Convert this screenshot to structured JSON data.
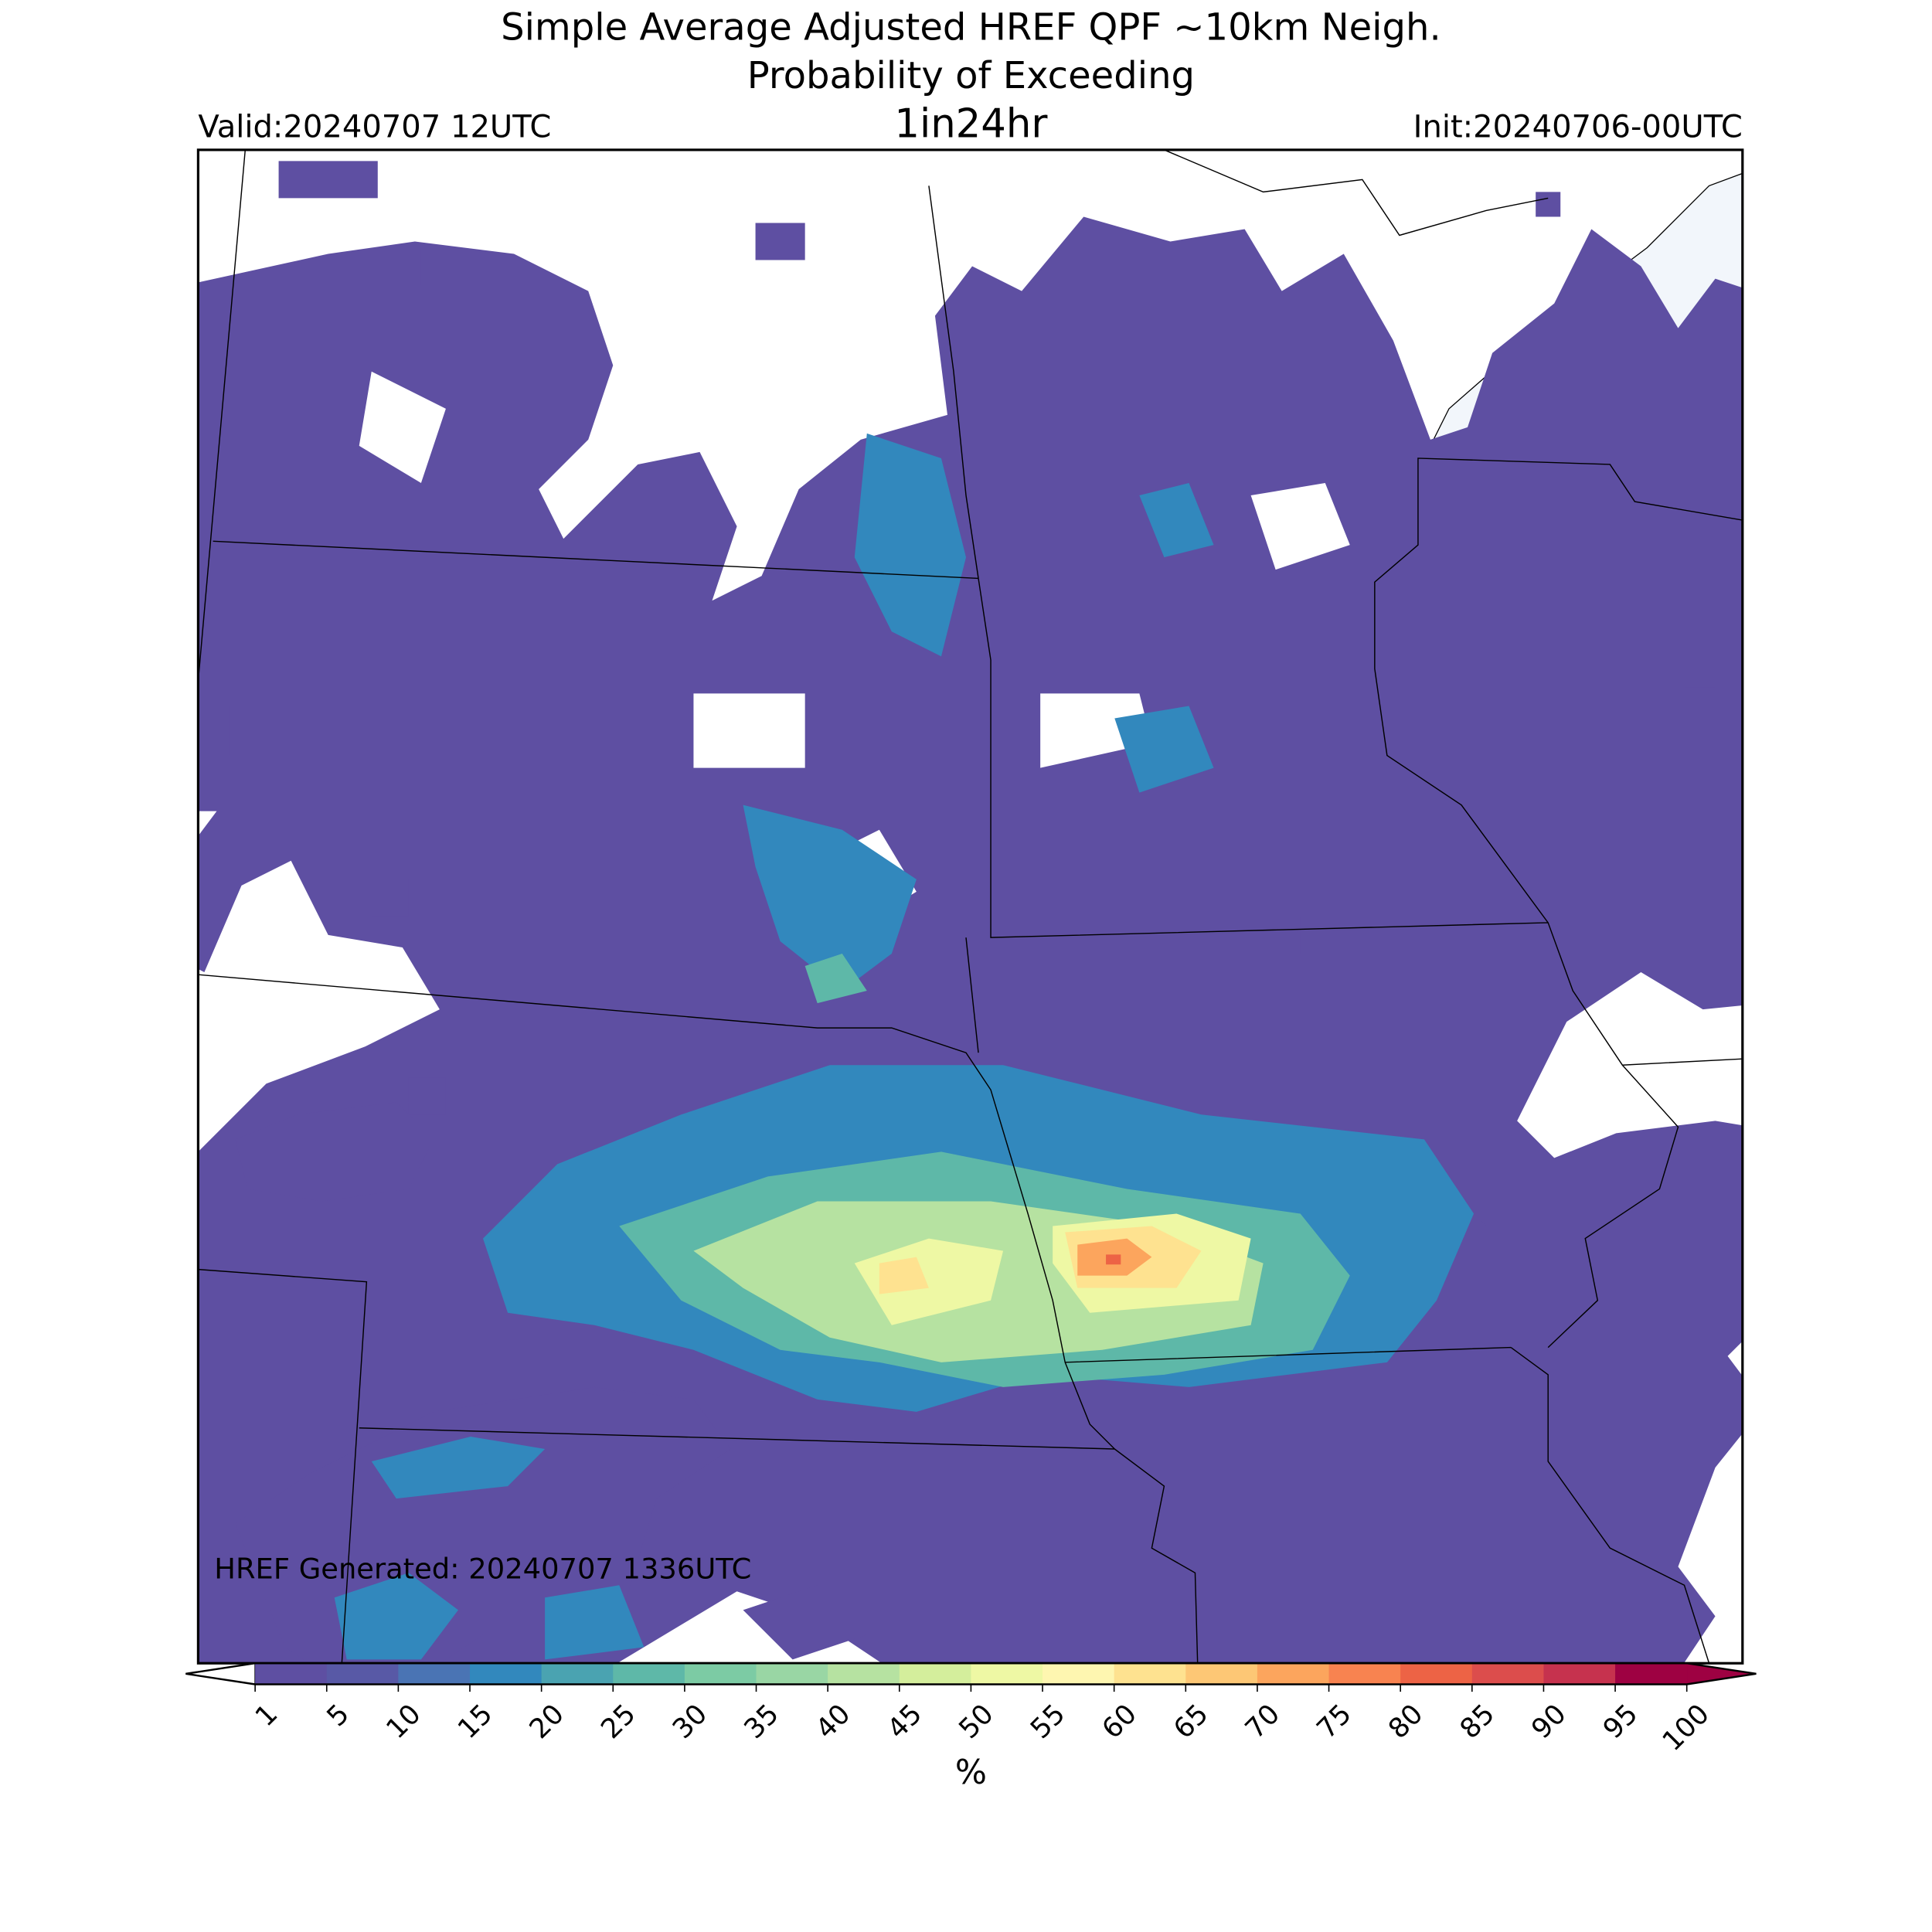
{
  "header": {
    "title": [
      "Simple Average Adjusted HREF QPF ~10km Neigh.",
      "Probability of Exceeding"
    ],
    "threshold": "1in24hr",
    "valid": "Valid:20240707 12UTC",
    "init": "Init:20240706-00UTC"
  },
  "map": {
    "note": "HREF Generated: 20240707 1336UTC"
  },
  "colorbar": {
    "label": "%",
    "ticks": [
      1,
      5,
      10,
      15,
      20,
      25,
      30,
      35,
      40,
      45,
      50,
      55,
      60,
      65,
      70,
      75,
      80,
      85,
      90,
      95,
      100
    ],
    "colors": [
      "#5e4fa2",
      "#5859a6",
      "#4a74b4",
      "#3288bd",
      "#4aa3b1",
      "#5eb8a8",
      "#7ccba4",
      "#99d6a4",
      "#b6e2a1",
      "#d4ee9c",
      "#eef8a4",
      "#fef6b0",
      "#fee290",
      "#fdc775",
      "#fca55d",
      "#f88350",
      "#ed6345",
      "#dc4d4c",
      "#c6324e",
      "#9e0142"
    ],
    "under_color": "#ffffff",
    "over_color": "#9e0142"
  }
}
